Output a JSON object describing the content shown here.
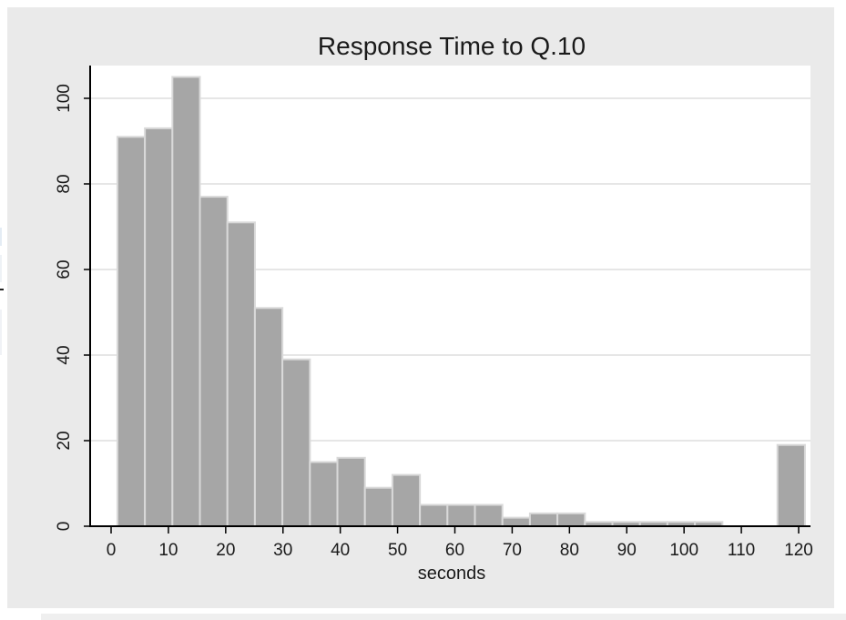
{
  "chart_data": {
    "type": "bar",
    "title": "Response Time to Q.10",
    "xlabel": "seconds",
    "ylabel": "",
    "xlim": [
      0,
      120
    ],
    "ylim": [
      0,
      105
    ],
    "xticks": [
      0,
      10,
      20,
      30,
      40,
      50,
      60,
      70,
      80,
      90,
      100,
      110,
      120
    ],
    "yticks": [
      0,
      20,
      40,
      60,
      80,
      100
    ],
    "grid": "horizontal",
    "bar_color": "#a6a6a6",
    "bar_edge_color": "#d9d9d9",
    "bin_width": 4.8,
    "bins_start": [
      1.1,
      5.9,
      10.7,
      15.5,
      20.3,
      25.1,
      29.9,
      34.7,
      39.5,
      44.3,
      49.1,
      53.9,
      58.7,
      63.5,
      68.3,
      73.1,
      77.9,
      82.7,
      87.5,
      92.3,
      97.1,
      101.9,
      106.7,
      111.5,
      116.3
    ],
    "values": [
      91,
      93,
      105,
      77,
      71,
      51,
      39,
      15,
      16,
      9,
      12,
      5,
      5,
      5,
      2,
      3,
      3,
      1,
      1,
      1,
      1,
      1,
      0,
      0,
      19
    ]
  }
}
